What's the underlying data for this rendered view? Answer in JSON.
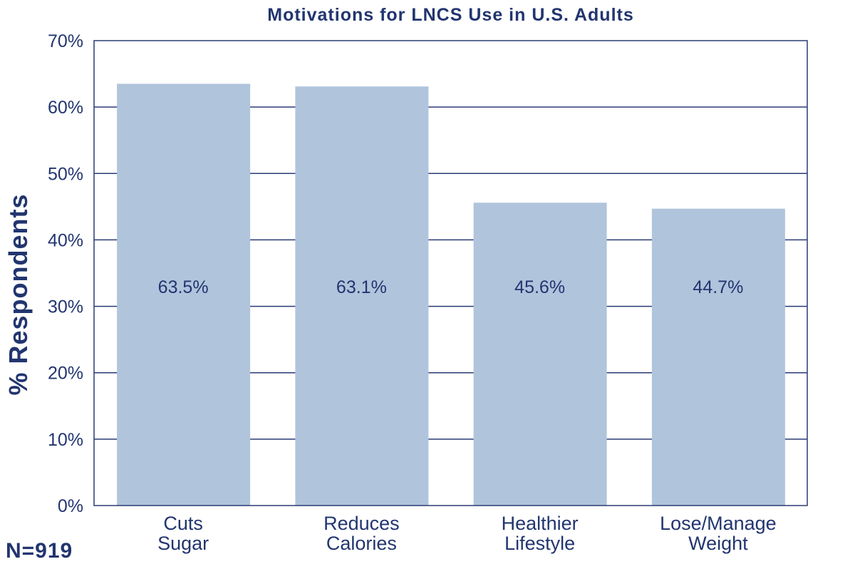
{
  "chart_data": {
    "type": "bar",
    "title": "Motivations for LNCS Use in U.S. Adults",
    "ylabel": "% Respondents",
    "xlabel": "",
    "categories": [
      [
        "Cuts",
        "Sugar"
      ],
      [
        "Reduces",
        "Calories"
      ],
      [
        "Healthier",
        "Lifestyle"
      ],
      [
        "Lose/Manage",
        "Weight"
      ]
    ],
    "values": [
      63.5,
      63.1,
      45.6,
      44.7
    ],
    "data_labels": [
      "63.5%",
      "63.1%",
      "45.6%",
      "44.7%"
    ],
    "ylim": [
      0,
      70
    ],
    "yticks": [
      0,
      10,
      20,
      30,
      40,
      50,
      60,
      70
    ],
    "ytick_labels": [
      "0%",
      "10%",
      "20%",
      "30%",
      "40%",
      "50%",
      "60%",
      "70%"
    ],
    "grid": true,
    "legend": "none",
    "colors": {
      "bar": "#b0c4dc",
      "text": "#22356f",
      "grid": "#2a3b74"
    }
  },
  "footnote": "N=919"
}
